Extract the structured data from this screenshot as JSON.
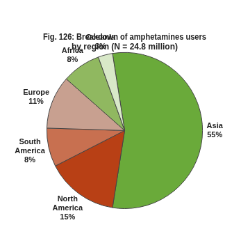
{
  "chart_data": {
    "type": "pie",
    "title": "Fig. 126: Breakdown of amphetamines users\nby region (N = 24.8 million)",
    "categories": [
      "Asia",
      "North\nAmerica",
      "South\nAmerica",
      "Europe",
      "Africa",
      "Oceania"
    ],
    "values": [
      55,
      15,
      8,
      11,
      8,
      3
    ],
    "value_labels": [
      "55%",
      "15%",
      "8%",
      "11%",
      "8%",
      "3%"
    ],
    "colors": [
      "#6aaa3a",
      "#b84015",
      "#c87050",
      "#c8a090",
      "#90b860",
      "#d8e8c8"
    ],
    "data_labels": true
  }
}
